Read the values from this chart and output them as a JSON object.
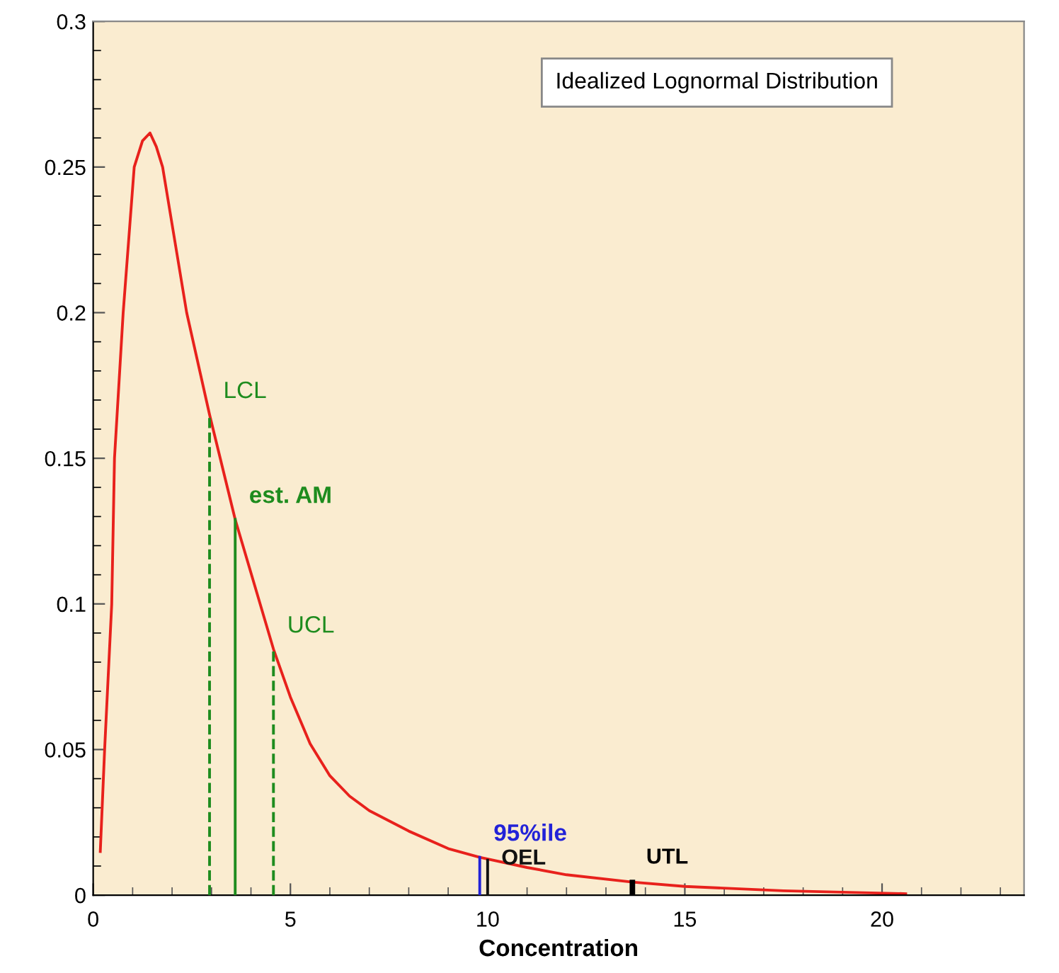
{
  "chart_data": {
    "type": "line",
    "title": "Idealized Lognormal Distribution",
    "xlabel": "Concentration",
    "xlim": [
      0,
      23.6
    ],
    "ylim": [
      0,
      0.3
    ],
    "xticks": [
      0,
      5,
      10,
      15,
      20
    ],
    "yticks": [
      0,
      0.05,
      0.1,
      0.15,
      0.2,
      0.25,
      0.3
    ],
    "grid": false,
    "legend": false,
    "marker": "none",
    "series": [
      {
        "color": "#e8211c",
        "line_style": "solid",
        "x": [
          0.18,
          0.29,
          0.47,
          0.54,
          0.76,
          1.04,
          1.25,
          1.44,
          1.6,
          1.76,
          2.37,
          2.95,
          3.6,
          4.57,
          5.0,
          5.5,
          6.0,
          6.5,
          7.0,
          8.0,
          9.0,
          9.8,
          11,
          12,
          13.67,
          15,
          17.5,
          20.6
        ],
        "values": [
          0.015,
          0.05,
          0.1,
          0.15,
          0.2,
          0.25,
          0.259,
          0.2617,
          0.257,
          0.25,
          0.2,
          0.165,
          0.129,
          0.0845,
          0.068,
          0.052,
          0.041,
          0.034,
          0.029,
          0.022,
          0.016,
          0.013,
          0.0095,
          0.007,
          0.0045,
          0.003,
          0.0015,
          0.0005
        ]
      },
      {
        "name": "LCL",
        "color": "#1e8c1e",
        "line_style": "dashed",
        "x": [
          2.95,
          2.95
        ],
        "values": [
          0,
          0.165
        ]
      },
      {
        "name": "est. AM",
        "color": "#1e8c1e",
        "line_style": "solid",
        "x": [
          3.6,
          3.6
        ],
        "values": [
          0,
          0.129
        ]
      },
      {
        "name": "UCL",
        "color": "#1e8c1e",
        "line_style": "dashed",
        "x": [
          4.57,
          4.57
        ],
        "values": [
          0,
          0.0845
        ]
      },
      {
        "name": "95%ile",
        "color": "#2222d8",
        "line_style": "solid",
        "x": [
          9.8,
          9.8
        ],
        "values": [
          0,
          0.013
        ]
      },
      {
        "name": "OEL",
        "color": "#111111",
        "line_style": "solid",
        "x": [
          10.0,
          10.0
        ],
        "values": [
          0,
          0.012
        ]
      },
      {
        "name": "UTL",
        "type": "bar",
        "color": "#000000",
        "x": [
          13.67
        ],
        "values": [
          0.0053
        ]
      }
    ]
  }
}
